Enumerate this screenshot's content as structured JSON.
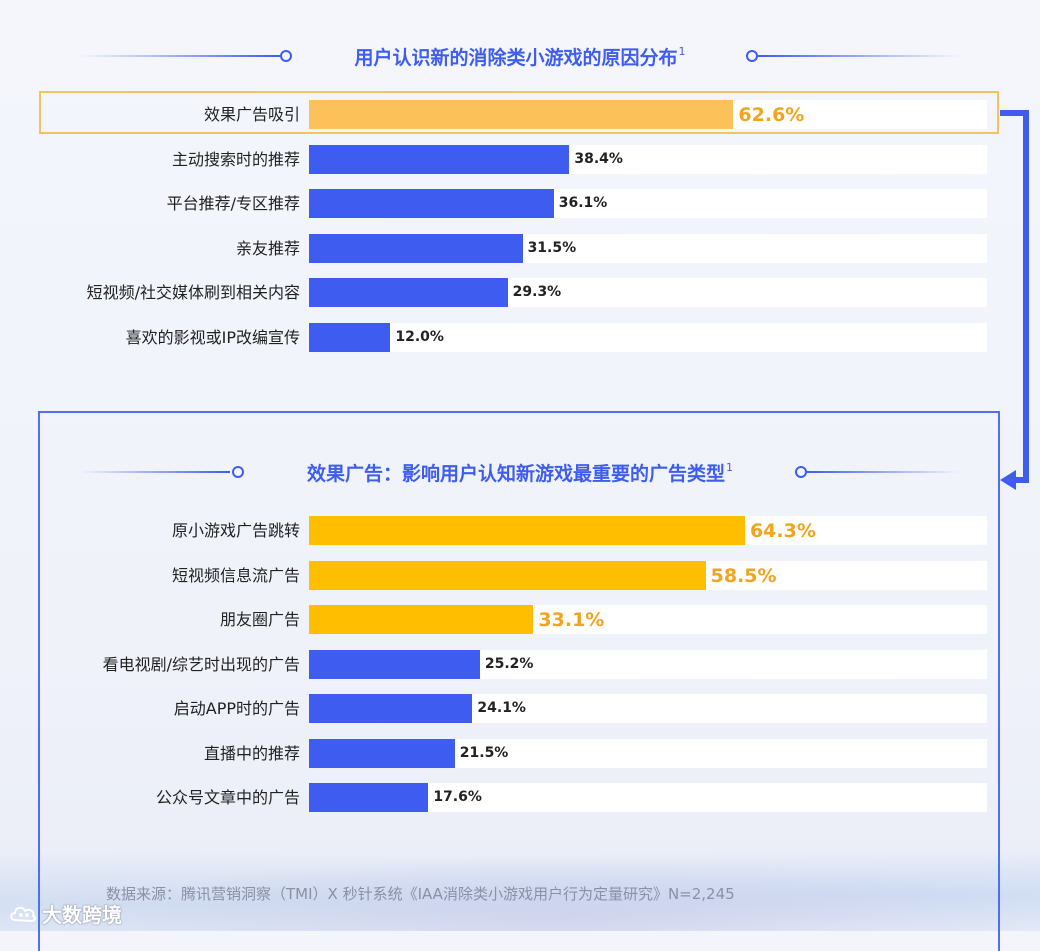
{
  "colors": {
    "primary": "#3e5df0",
    "highlight": "#fdc15a",
    "highlight_strong": "#ffbf00",
    "value_highlight": "#f1a41c",
    "track": "#ffffff"
  },
  "chart_data": [
    {
      "type": "bar",
      "orientation": "horizontal",
      "title": "用户认识新的消除类小游戏的原因分布",
      "title_sup": "1",
      "categories": [
        "效果广告吸引",
        "主动搜索时的推荐",
        "平台推荐/专区推荐",
        "亲友推荐",
        "短视频/社交媒体刷到相关内容",
        "喜欢的影视或IP改编宣传"
      ],
      "values": [
        62.6,
        38.4,
        36.1,
        31.5,
        29.3,
        12.0
      ],
      "value_labels": [
        "62.6%",
        "38.4%",
        "36.1%",
        "31.5%",
        "29.3%",
        "12.0%"
      ],
      "highlighted": [
        true,
        false,
        false,
        false,
        false,
        false
      ],
      "xlim": [
        0,
        100
      ]
    },
    {
      "type": "bar",
      "orientation": "horizontal",
      "title": "效果广告：影响用户认知新游戏最重要的广告类型",
      "title_sup": "1",
      "categories": [
        "原小游戏广告跳转",
        "短视频信息流广告",
        "朋友圈广告",
        "看电视剧/综艺时出现的广告",
        "启动APP时的广告",
        "直播中的推荐",
        "公众号文章中的广告"
      ],
      "values": [
        64.3,
        58.5,
        33.1,
        25.2,
        24.1,
        21.5,
        17.6
      ],
      "value_labels": [
        "64.3%",
        "58.5%",
        "33.1%",
        "25.2%",
        "24.1%",
        "21.5%",
        "17.6%"
      ],
      "highlighted": [
        true,
        true,
        true,
        false,
        false,
        false,
        false
      ],
      "xlim": [
        0,
        100
      ]
    }
  ],
  "footer": {
    "source": "数据来源：腾讯营销洞察（TMI）X 秒针系统《IAA消除类小游戏用户行为定量研究》N=2,245",
    "watermark_text": "大数跨境",
    "watermark_icon": "cloud-logo-icon"
  }
}
